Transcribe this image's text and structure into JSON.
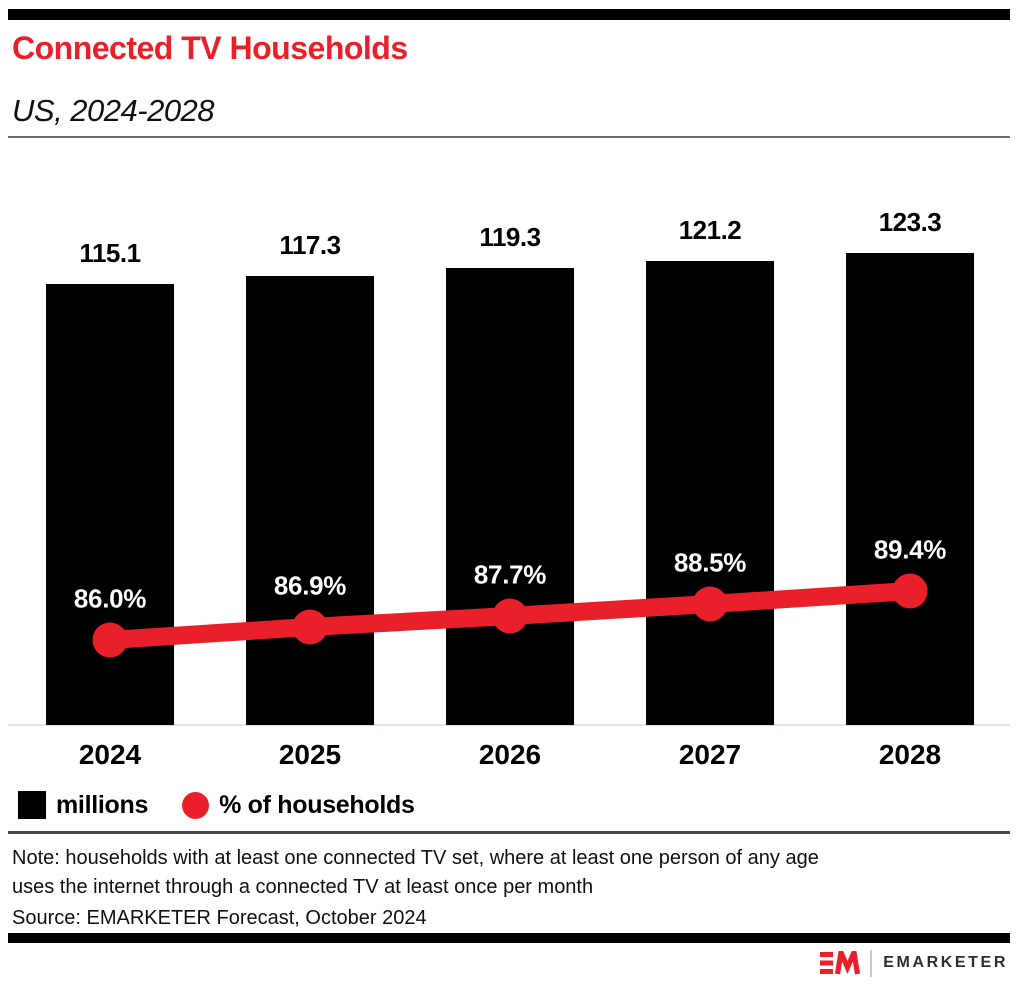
{
  "header": {
    "title": "Connected TV Households",
    "subtitle": "US, 2024-2028"
  },
  "chart_data": {
    "type": "combo",
    "title": "Connected TV Households",
    "subtitle": "US, 2024-2028",
    "categories": [
      "2024",
      "2025",
      "2026",
      "2027",
      "2028"
    ],
    "series": [
      {
        "name": "millions",
        "type": "bar",
        "color": "#000000",
        "values": [
          115.1,
          117.3,
          119.3,
          121.2,
          123.3
        ],
        "labels": [
          "115.1",
          "117.3",
          "119.3",
          "121.2",
          "123.3"
        ]
      },
      {
        "name": "% of households",
        "type": "line",
        "color": "#e9202a",
        "values": [
          86.0,
          86.9,
          87.7,
          88.5,
          89.4
        ],
        "labels": [
          "86.0%",
          "86.9%",
          "87.7%",
          "88.5%",
          "89.4%"
        ]
      }
    ],
    "bar_axis": {
      "min": 0,
      "unit": "millions"
    },
    "line_axis": {
      "unit": "% of households"
    },
    "grid": false,
    "legend_position": "bottom-left"
  },
  "legend": {
    "items": [
      {
        "label": "millions",
        "swatch": "square",
        "color": "#000000"
      },
      {
        "label": "% of households",
        "swatch": "circle",
        "color": "#e9202a"
      }
    ]
  },
  "footnote": {
    "note_lines": [
      "Note: households with at least one connected TV set, where at least one person of any age",
      "uses the internet through a connected TV at least once per month"
    ],
    "source": "Source: EMARKETER Forecast, October 2024"
  },
  "branding": {
    "logo_mark": "EM",
    "wordmark": "EMARKETER"
  },
  "colors": {
    "brand_red": "#e9202a",
    "bar_black": "#000000",
    "axis_line": "#dde2ec",
    "rule_gray": "#6a6a6a",
    "rule_dark": "#4a4a4a",
    "text_dark": "#101010",
    "pct_label": "#ffffff",
    "wordmark_gray": "#2d2d2d"
  }
}
